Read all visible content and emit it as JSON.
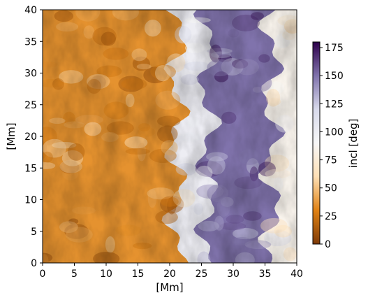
{
  "chart_data": {
    "type": "heatmap",
    "title": "",
    "xlabel": "[Mm]",
    "ylabel": "[Mm]",
    "xlim": [
      0,
      40
    ],
    "ylim": [
      0,
      40
    ],
    "x_ticks": [
      0,
      5,
      10,
      15,
      20,
      25,
      30,
      35,
      40
    ],
    "y_ticks": [
      0,
      5,
      10,
      15,
      20,
      25,
      30,
      35,
      40
    ],
    "colorbar": {
      "label": "incl [deg]",
      "range": [
        0,
        180
      ],
      "ticks": [
        0,
        25,
        50,
        75,
        100,
        125,
        150,
        175
      ],
      "colormap": "PuOr",
      "colors": [
        "#7f3b08",
        "#e08214",
        "#fee0b6",
        "#f7f7f7",
        "#d8daeb",
        "#8073ac",
        "#2d004b"
      ]
    },
    "field_description": {
      "structure": "vertical bands",
      "bands": [
        {
          "x_range": [
            0,
            21
          ],
          "value_approx": 35
        },
        {
          "x_range": [
            21,
            26
          ],
          "value_approx": 100
        },
        {
          "x_range": [
            26,
            36
          ],
          "value_approx": 150
        },
        {
          "x_range": [
            36,
            40
          ],
          "value_approx": 85
        }
      ]
    }
  }
}
